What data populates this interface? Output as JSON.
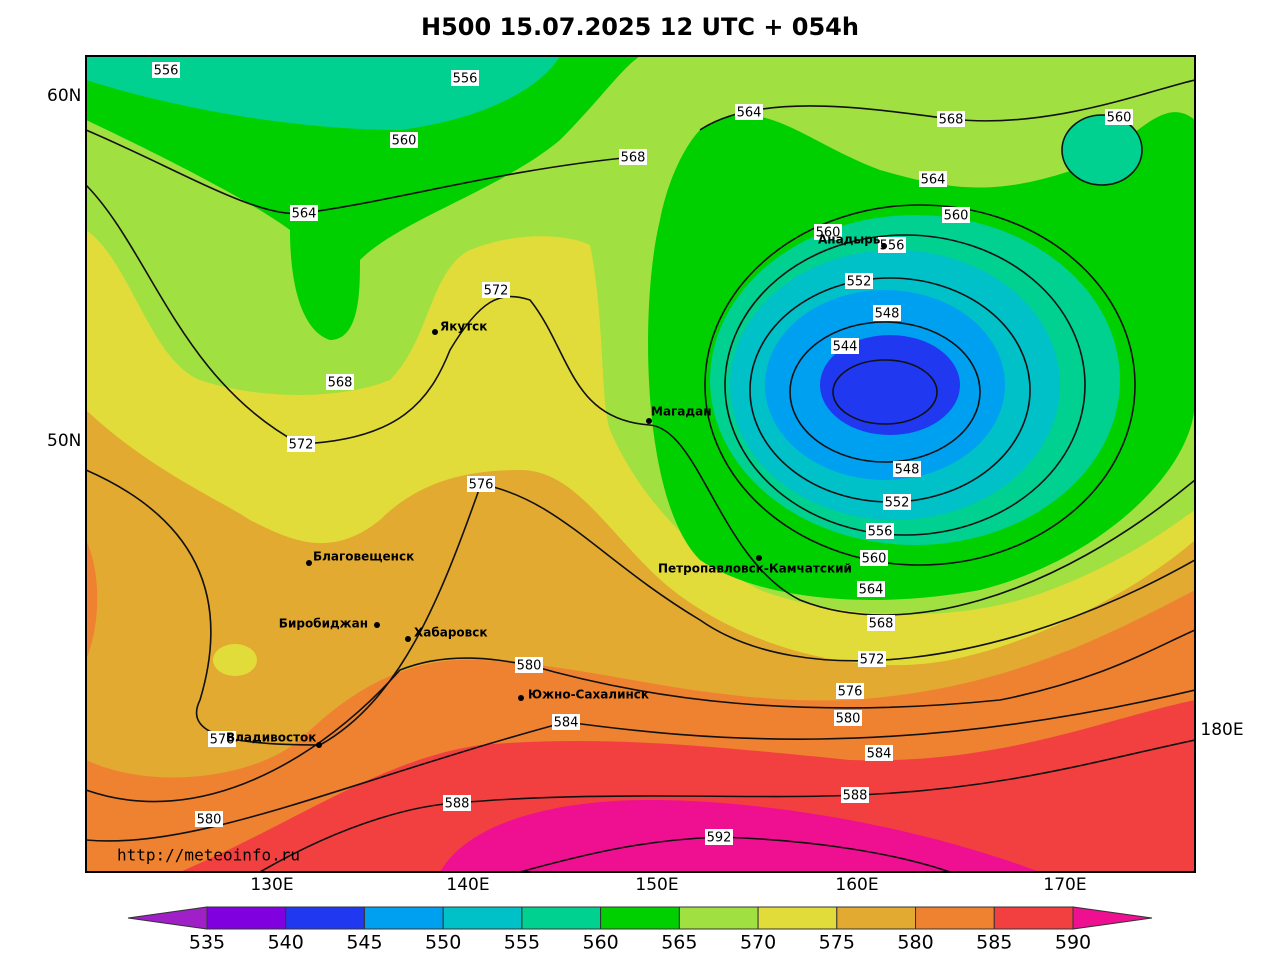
{
  "title": "H500  15.07.2025 12 UTC + 054h",
  "lat_labels": [
    "60N",
    "50N"
  ],
  "lon_labels": [
    "130E",
    "140E",
    "150E",
    "160E",
    "170E",
    "180E"
  ],
  "contour_labels": [
    556,
    556,
    560,
    564,
    568,
    572,
    572,
    576,
    568,
    564,
    568,
    560,
    564,
    560,
    560,
    556,
    552,
    548,
    544,
    548,
    552,
    556,
    560,
    564,
    568,
    572,
    576,
    580,
    584,
    588,
    592,
    580,
    584,
    588,
    580,
    576
  ],
  "cities": [
    "Якутск",
    "Магадан",
    "Анадырь",
    "Петропавловск-Камчатский",
    "Благовещенск",
    "Биробиджан",
    "Хабаровск",
    "Южно-Сахалинск",
    "Владивосток"
  ],
  "source": "http://meteoinfo.ru",
  "colorbar": {
    "levels": [
      535,
      540,
      545,
      550,
      555,
      560,
      565,
      570,
      575,
      580,
      585,
      590
    ],
    "colors": [
      "#a020c8",
      "#8000e0",
      "#2038f0",
      "#00a0f0",
      "#00c0c8",
      "#00d090",
      "#00d000",
      "#a0e040",
      "#e2dc3a",
      "#e2aa30",
      "#ee8230",
      "#f24040",
      "#ee1090"
    ]
  }
}
